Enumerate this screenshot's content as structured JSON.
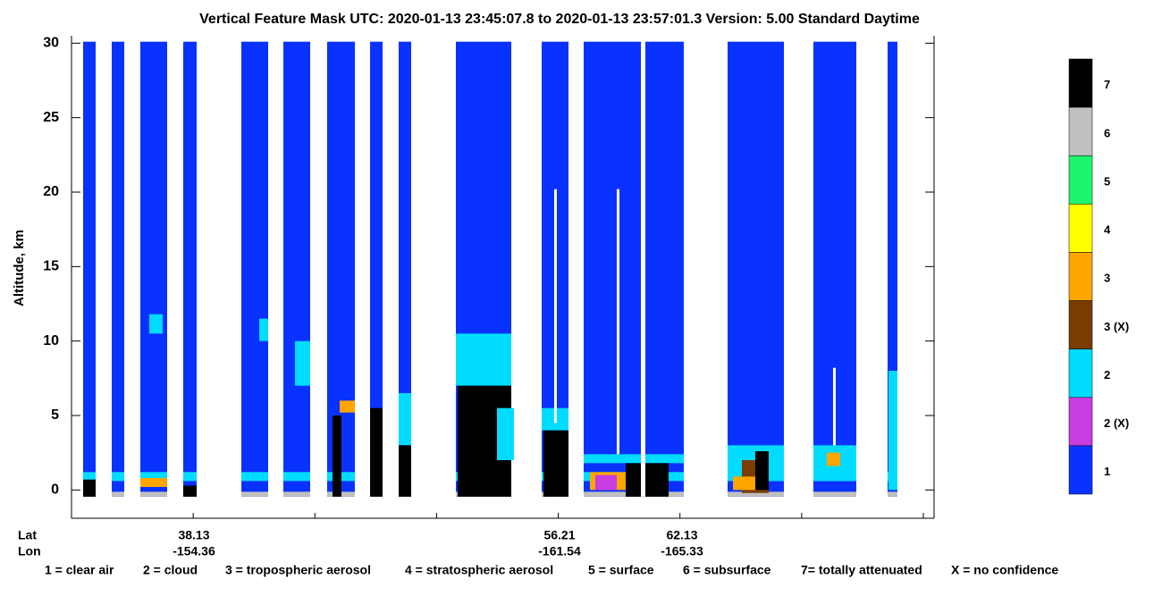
{
  "chart_data": {
    "type": "curtain",
    "title": "Vertical Feature Mask    UTC:  2020-01-13    23:45:07.8  to  2020-01-13    23:57:01.3    Version: 5.00  Standard Daytime",
    "y_label": "Altitude, km",
    "ylim": [
      -1.9,
      30.5
    ],
    "yticks": [
      0,
      5,
      10,
      15,
      20,
      25,
      30
    ],
    "x_axis": {
      "lat_label": "Lat",
      "lon_label": "Lon",
      "ticks": [
        {
          "lat": 38.13,
          "lon": -154.36
        },
        {
          "lat": 56.21,
          "lon": -161.54
        },
        {
          "lat": 62.13,
          "lon": -165.33
        }
      ]
    },
    "colorbar": [
      {
        "label": "7",
        "color": "#000000"
      },
      {
        "label": "6",
        "color": "#c0c0c0"
      },
      {
        "label": "5",
        "color": "#1ef56e"
      },
      {
        "label": "4",
        "color": "#ffff00"
      },
      {
        "label": "3",
        "color": "#ffa500"
      },
      {
        "label": "3 (X)",
        "color": "#7a3c00"
      },
      {
        "label": "2",
        "color": "#00dcff"
      },
      {
        "label": "2 (X)",
        "color": "#c83ce0"
      },
      {
        "label": "1",
        "color": "#0a32ff"
      }
    ],
    "footnote": [
      "1 = clear air",
      "2 = cloud",
      "3 = tropospheric aerosol",
      "4 = stratospheric aerosol",
      "5 = surface",
      "6 = subsurface",
      "7= totally attenuated",
      "X = no confidence"
    ]
  }
}
